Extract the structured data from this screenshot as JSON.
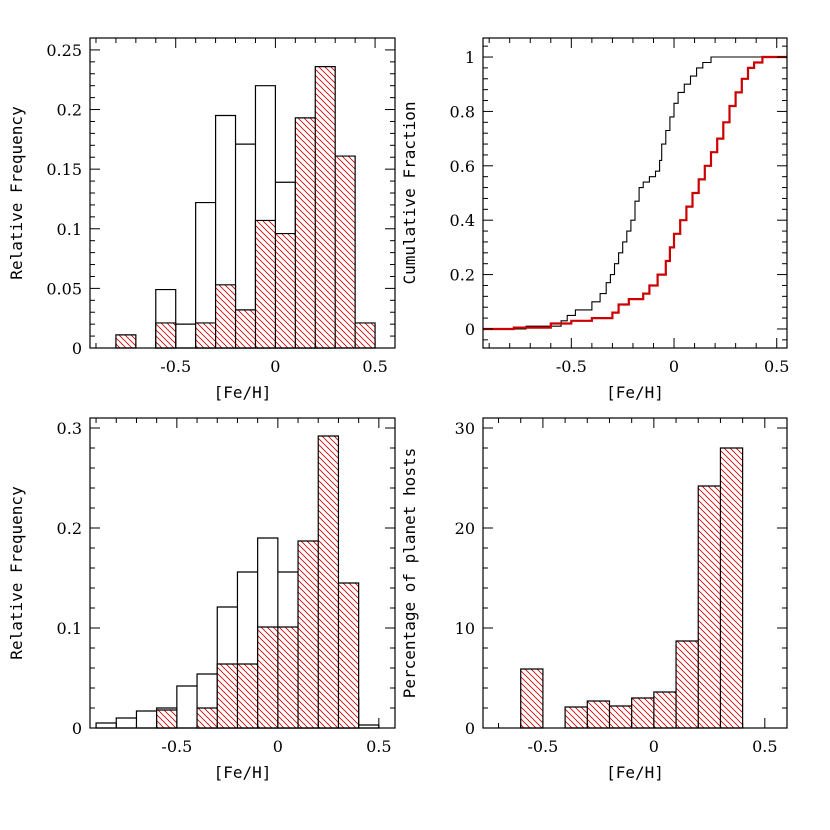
{
  "colors": {
    "accent": "#cc0000",
    "line": "#000000"
  },
  "chart_data": [
    {
      "type": "area",
      "panel": "top-left",
      "style": "histogram",
      "xlabel": "[Fe/H]",
      "ylabel": "Relative Frequency",
      "xlim": [
        -0.93,
        0.6
      ],
      "ylim": [
        0,
        0.26
      ],
      "x_ticks": [
        "-0.5",
        "0",
        "0.5"
      ],
      "x_tick_values": [
        -0.5,
        0,
        0.5
      ],
      "y_ticks": [
        "0",
        "0.05",
        "0.1",
        "0.15",
        "0.2",
        "0.25"
      ],
      "y_tick_values": [
        0,
        0.05,
        0.1,
        0.15,
        0.2,
        0.25
      ],
      "series": [
        {
          "style": "outline",
          "bins": [
            [
              -0.6,
              -0.5,
              0.049
            ],
            [
              -0.5,
              -0.4,
              0.02
            ],
            [
              -0.4,
              -0.3,
              0.122
            ],
            [
              -0.3,
              -0.2,
              0.195
            ],
            [
              -0.2,
              -0.1,
              0.171
            ],
            [
              -0.1,
              0.0,
              0.22
            ],
            [
              0.0,
              0.1,
              0.139
            ],
            [
              0.1,
              0.2,
              0.122
            ],
            [
              0.2,
              0.3,
              0.0
            ]
          ]
        },
        {
          "style": "hatched",
          "bins": [
            [
              -0.8,
              -0.7,
              0.011
            ],
            [
              -0.6,
              -0.5,
              0.021
            ],
            [
              -0.4,
              -0.3,
              0.021
            ],
            [
              -0.3,
              -0.2,
              0.053
            ],
            [
              -0.2,
              -0.1,
              0.032
            ],
            [
              -0.1,
              0.0,
              0.107
            ],
            [
              0.0,
              0.1,
              0.096
            ],
            [
              0.1,
              0.2,
              0.193
            ],
            [
              0.2,
              0.3,
              0.236
            ],
            [
              0.3,
              0.4,
              0.161
            ],
            [
              0.4,
              0.5,
              0.021
            ]
          ]
        }
      ]
    },
    {
      "type": "line",
      "panel": "top-right",
      "xlabel": "[Fe/H]",
      "ylabel": "Cumulative Fraction",
      "xlim": [
        -0.93,
        0.55
      ],
      "ylim": [
        -0.07,
        1.07
      ],
      "x_ticks": [
        "-0.5",
        "0",
        "0.5"
      ],
      "x_tick_values": [
        -0.5,
        0,
        0.5
      ],
      "y_ticks": [
        "0",
        "0.2",
        "0.4",
        "0.6",
        "0.8",
        "1"
      ],
      "y_tick_values": [
        0,
        0.2,
        0.4,
        0.6,
        0.8,
        1
      ],
      "series": [
        {
          "style": "black-step",
          "points": [
            [
              -0.93,
              0.0
            ],
            [
              -0.72,
              0.0
            ],
            [
              -0.72,
              0.01
            ],
            [
              -0.55,
              0.01
            ],
            [
              -0.55,
              0.03
            ],
            [
              -0.52,
              0.03
            ],
            [
              -0.52,
              0.05
            ],
            [
              -0.48,
              0.05
            ],
            [
              -0.48,
              0.07
            ],
            [
              -0.4,
              0.07
            ],
            [
              -0.4,
              0.1
            ],
            [
              -0.36,
              0.1
            ],
            [
              -0.36,
              0.13
            ],
            [
              -0.33,
              0.13
            ],
            [
              -0.33,
              0.17
            ],
            [
              -0.31,
              0.17
            ],
            [
              -0.31,
              0.2
            ],
            [
              -0.29,
              0.2
            ],
            [
              -0.29,
              0.24
            ],
            [
              -0.27,
              0.24
            ],
            [
              -0.27,
              0.28
            ],
            [
              -0.25,
              0.28
            ],
            [
              -0.25,
              0.32
            ],
            [
              -0.23,
              0.32
            ],
            [
              -0.23,
              0.36
            ],
            [
              -0.21,
              0.36
            ],
            [
              -0.21,
              0.4
            ],
            [
              -0.19,
              0.4
            ],
            [
              -0.19,
              0.47
            ],
            [
              -0.17,
              0.47
            ],
            [
              -0.17,
              0.52
            ],
            [
              -0.15,
              0.52
            ],
            [
              -0.15,
              0.54
            ],
            [
              -0.12,
              0.54
            ],
            [
              -0.12,
              0.56
            ],
            [
              -0.09,
              0.56
            ],
            [
              -0.09,
              0.58
            ],
            [
              -0.07,
              0.58
            ],
            [
              -0.07,
              0.62
            ],
            [
              -0.06,
              0.62
            ],
            [
              -0.06,
              0.68
            ],
            [
              -0.04,
              0.68
            ],
            [
              -0.04,
              0.73
            ],
            [
              -0.02,
              0.73
            ],
            [
              -0.02,
              0.78
            ],
            [
              0.0,
              0.78
            ],
            [
              0.0,
              0.83
            ],
            [
              0.02,
              0.83
            ],
            [
              0.02,
              0.87
            ],
            [
              0.05,
              0.87
            ],
            [
              0.05,
              0.9
            ],
            [
              0.08,
              0.9
            ],
            [
              0.08,
              0.93
            ],
            [
              0.11,
              0.93
            ],
            [
              0.11,
              0.96
            ],
            [
              0.14,
              0.96
            ],
            [
              0.14,
              0.98
            ],
            [
              0.18,
              0.98
            ],
            [
              0.18,
              1.0
            ],
            [
              0.55,
              1.0
            ]
          ]
        },
        {
          "style": "red-step",
          "points": [
            [
              -0.93,
              0.0
            ],
            [
              -0.78,
              0.0
            ],
            [
              -0.78,
              0.005
            ],
            [
              -0.6,
              0.005
            ],
            [
              -0.6,
              0.02
            ],
            [
              -0.5,
              0.02
            ],
            [
              -0.5,
              0.03
            ],
            [
              -0.4,
              0.03
            ],
            [
              -0.4,
              0.04
            ],
            [
              -0.3,
              0.04
            ],
            [
              -0.3,
              0.06
            ],
            [
              -0.27,
              0.06
            ],
            [
              -0.27,
              0.09
            ],
            [
              -0.22,
              0.09
            ],
            [
              -0.22,
              0.11
            ],
            [
              -0.15,
              0.11
            ],
            [
              -0.15,
              0.13
            ],
            [
              -0.12,
              0.13
            ],
            [
              -0.12,
              0.16
            ],
            [
              -0.08,
              0.16
            ],
            [
              -0.08,
              0.2
            ],
            [
              -0.04,
              0.2
            ],
            [
              -0.04,
              0.25
            ],
            [
              -0.02,
              0.25
            ],
            [
              -0.02,
              0.3
            ],
            [
              0.0,
              0.3
            ],
            [
              0.0,
              0.35
            ],
            [
              0.03,
              0.35
            ],
            [
              0.03,
              0.4
            ],
            [
              0.06,
              0.4
            ],
            [
              0.06,
              0.45
            ],
            [
              0.09,
              0.45
            ],
            [
              0.09,
              0.5
            ],
            [
              0.12,
              0.5
            ],
            [
              0.12,
              0.55
            ],
            [
              0.15,
              0.55
            ],
            [
              0.15,
              0.6
            ],
            [
              0.18,
              0.6
            ],
            [
              0.18,
              0.65
            ],
            [
              0.21,
              0.65
            ],
            [
              0.21,
              0.7
            ],
            [
              0.24,
              0.7
            ],
            [
              0.24,
              0.76
            ],
            [
              0.27,
              0.76
            ],
            [
              0.27,
              0.82
            ],
            [
              0.3,
              0.82
            ],
            [
              0.3,
              0.87
            ],
            [
              0.33,
              0.87
            ],
            [
              0.33,
              0.92
            ],
            [
              0.36,
              0.92
            ],
            [
              0.36,
              0.96
            ],
            [
              0.39,
              0.96
            ],
            [
              0.39,
              0.98
            ],
            [
              0.43,
              0.98
            ],
            [
              0.43,
              1.0
            ],
            [
              0.55,
              1.0
            ]
          ]
        }
      ]
    },
    {
      "type": "area",
      "panel": "bottom-left",
      "style": "histogram",
      "xlabel": "[Fe/H]",
      "ylabel": "Relative Frequency",
      "xlim": [
        -0.93,
        0.58
      ],
      "ylim": [
        0,
        0.31
      ],
      "x_ticks": [
        "-0.5",
        "0",
        "0.5"
      ],
      "x_tick_values": [
        -0.5,
        0,
        0.5
      ],
      "y_ticks": [
        "0",
        "0.1",
        "0.2",
        "0.3"
      ],
      "y_tick_values": [
        0,
        0.1,
        0.2,
        0.3
      ],
      "series": [
        {
          "style": "outline",
          "bins": [
            [
              -0.9,
              -0.8,
              0.005
            ],
            [
              -0.8,
              -0.7,
              0.01
            ],
            [
              -0.7,
              -0.6,
              0.017
            ],
            [
              -0.6,
              -0.5,
              0.02
            ],
            [
              -0.5,
              -0.4,
              0.042
            ],
            [
              -0.4,
              -0.3,
              0.054
            ],
            [
              -0.3,
              -0.2,
              0.121
            ],
            [
              -0.2,
              -0.1,
              0.156
            ],
            [
              -0.1,
              0.0,
              0.19
            ],
            [
              0.0,
              0.1,
              0.156
            ],
            [
              0.1,
              0.2,
              0.102
            ],
            [
              0.2,
              0.3,
              0.065
            ],
            [
              0.3,
              0.4,
              0.03
            ],
            [
              0.4,
              0.5,
              0.003
            ]
          ]
        },
        {
          "style": "hatched",
          "bins": [
            [
              -0.6,
              -0.5,
              0.018
            ],
            [
              -0.4,
              -0.3,
              0.02
            ],
            [
              -0.3,
              -0.2,
              0.064
            ],
            [
              -0.2,
              -0.1,
              0.064
            ],
            [
              -0.1,
              0.0,
              0.101
            ],
            [
              0.0,
              0.1,
              0.101
            ],
            [
              0.1,
              0.2,
              0.187
            ],
            [
              0.2,
              0.3,
              0.292
            ],
            [
              0.3,
              0.4,
              0.145
            ]
          ]
        }
      ]
    },
    {
      "type": "bar",
      "panel": "bottom-right",
      "style": "histogram",
      "xlabel": "[Fe/H]",
      "ylabel": "Percentage of planet hosts",
      "xlim": [
        -0.77,
        0.6
      ],
      "ylim": [
        0,
        31
      ],
      "x_ticks": [
        "-0.5",
        "0",
        "0.5"
      ],
      "x_tick_values": [
        -0.5,
        0,
        0.5
      ],
      "y_ticks": [
        "0",
        "10",
        "20",
        "30"
      ],
      "y_tick_values": [
        0,
        10,
        20,
        30
      ],
      "series": [
        {
          "style": "hatched",
          "bins": [
            [
              -0.6,
              -0.5,
              5.9
            ],
            [
              -0.4,
              -0.3,
              2.1
            ],
            [
              -0.3,
              -0.2,
              2.7
            ],
            [
              -0.2,
              -0.1,
              2.2
            ],
            [
              -0.1,
              0.0,
              3.0
            ],
            [
              0.0,
              0.1,
              3.6
            ],
            [
              0.1,
              0.2,
              8.7
            ],
            [
              0.2,
              0.3,
              24.2
            ],
            [
              0.3,
              0.4,
              28.0
            ]
          ]
        }
      ]
    }
  ]
}
